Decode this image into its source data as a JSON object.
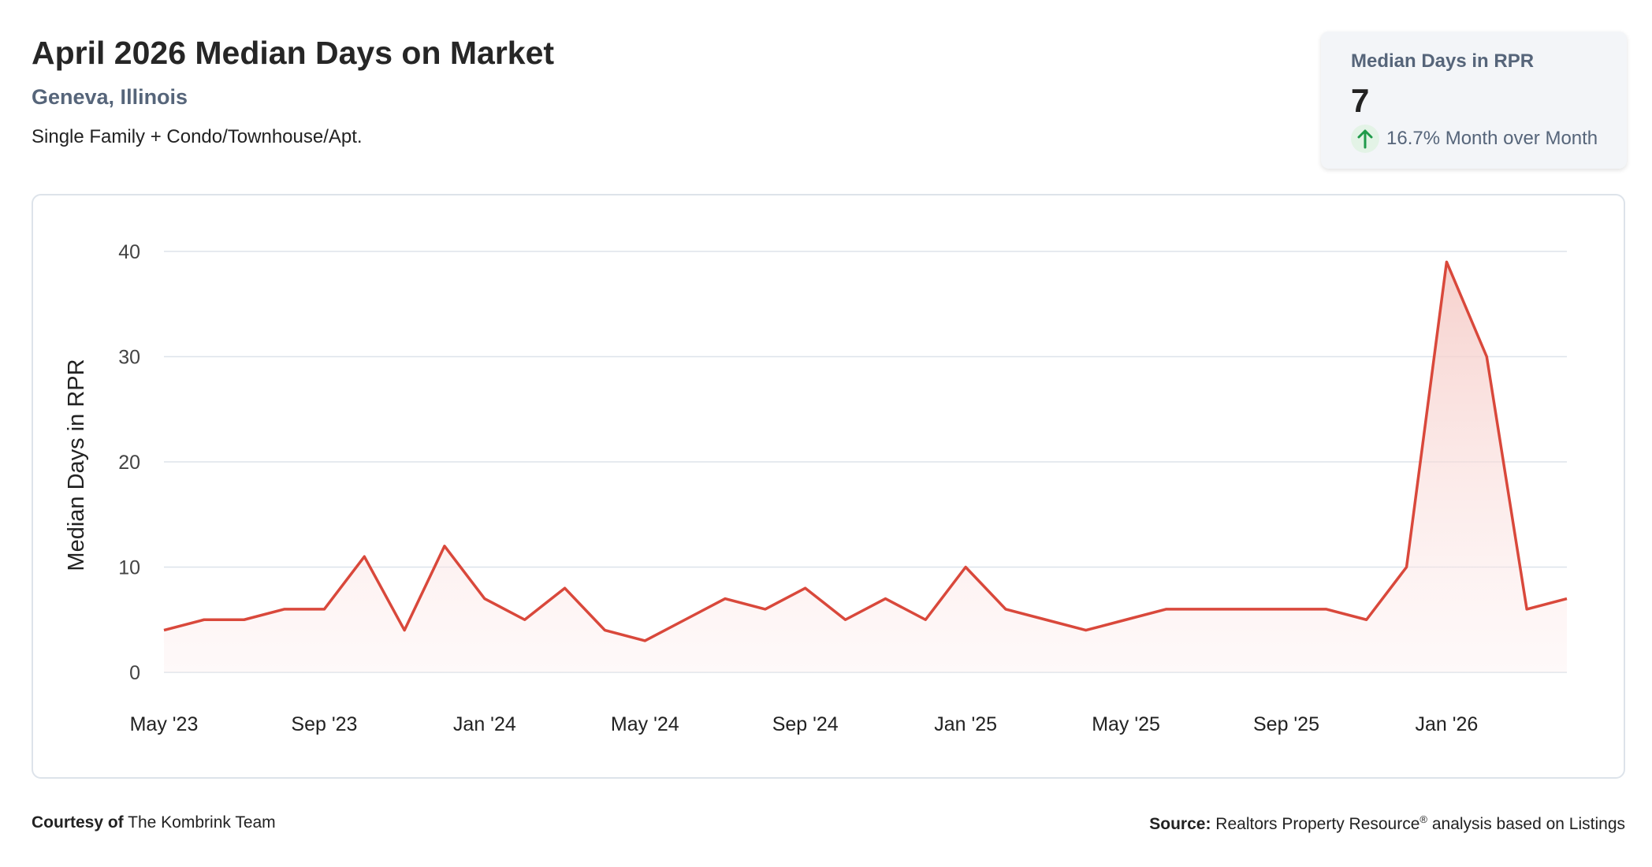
{
  "header": {
    "title": "April 2026 Median Days on Market",
    "location": "Geneva, Illinois",
    "property_types": "Single Family + Condo/Townhouse/Apt."
  },
  "kpi": {
    "label": "Median Days in RPR",
    "value": "7",
    "change_text": "16.7% Month over Month",
    "icon": "arrow-up-icon"
  },
  "colors": {
    "line": "#d9483b",
    "fill": "#f7d4d0",
    "grid": "#dde3ea",
    "up_arrow": "#1f9a4a",
    "label": "#56657a"
  },
  "chart_data": {
    "type": "area",
    "ylabel": "Median Days in RPR",
    "xlabel": "",
    "ylim": [
      0,
      40
    ],
    "yticks": [
      0,
      10,
      20,
      30,
      40
    ],
    "grid": true,
    "x_tick_labels": [
      "May '23",
      "Sep '23",
      "Jan '24",
      "May '24",
      "Sep '24",
      "Jan '25",
      "May '25",
      "Sep '25",
      "Jan '26"
    ],
    "x": [
      "2023-05",
      "2023-06",
      "2023-07",
      "2023-08",
      "2023-09",
      "2023-10",
      "2023-11",
      "2023-12",
      "2024-01",
      "2024-02",
      "2024-03",
      "2024-04",
      "2024-05",
      "2024-06",
      "2024-07",
      "2024-08",
      "2024-09",
      "2024-10",
      "2024-11",
      "2024-12",
      "2025-01",
      "2025-02",
      "2025-03",
      "2025-04",
      "2025-05",
      "2025-06",
      "2025-07",
      "2025-08",
      "2025-09",
      "2025-10",
      "2025-11",
      "2025-12",
      "2026-01",
      "2026-02",
      "2026-03",
      "2026-04"
    ],
    "series": [
      {
        "values": [
          4,
          5,
          5,
          6,
          6,
          11,
          4,
          12,
          7,
          5,
          8,
          4,
          3,
          5,
          7,
          6,
          8,
          5,
          7,
          5,
          10,
          6,
          5,
          4,
          5,
          6,
          6,
          6,
          6,
          6,
          5,
          10,
          39,
          30,
          6,
          7
        ]
      }
    ]
  },
  "footer": {
    "courtesy_label": "Courtesy of",
    "courtesy_name": "The Kombrink Team",
    "source_label": "Source:",
    "source_name": "Realtors Property Resource",
    "source_mark": "®",
    "source_rest": "analysis based on Listings"
  }
}
